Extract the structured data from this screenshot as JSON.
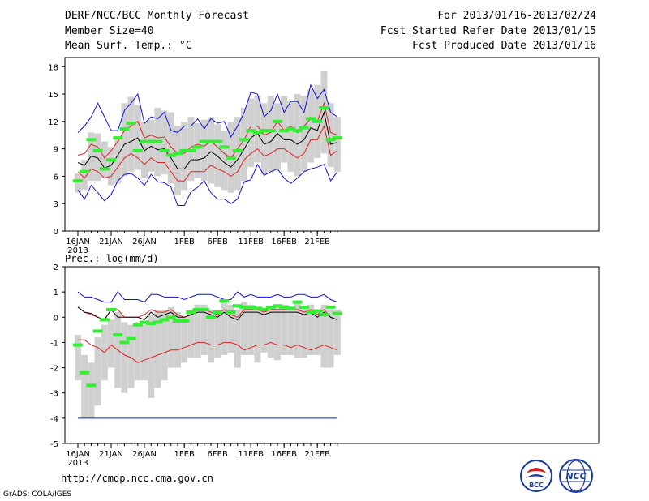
{
  "header": {
    "title": "DERF/NCC/BCC Monthly Forecast",
    "member_size": "Member Size=40",
    "variable1": "Mean Surf. Temp.: °C",
    "period": "For 2013/01/16-2013/02/24",
    "started": "Fcst Started Refer Date 2013/01/15",
    "produced": "Fcst Produced Date 2013/01/16"
  },
  "footer": {
    "url": "http://cmdp.ncc.cma.gov.cn",
    "credit": "GrADS: COLA/IGES",
    "logo_left_text": "BCC",
    "logo_right_text": "NCC"
  },
  "colors": {
    "box": "#d0d0d0",
    "mean": "#000000",
    "std": "#dd2222",
    "range": "#1010dd",
    "median": "#33ee33"
  },
  "chart_data": [
    {
      "type": "line",
      "title": "Mean Surf. Temp.: °C",
      "x_labels": [
        "16JAN",
        "21JAN",
        "26JAN",
        "1FEB",
        "6FEB",
        "11FEB",
        "16FEB",
        "21FEB"
      ],
      "x_label_day_index": [
        0,
        5,
        10,
        16,
        21,
        26,
        31,
        36
      ],
      "year_label": "2013",
      "ylim": [
        0,
        19
      ],
      "yticks": [
        0,
        3,
        6,
        9,
        12,
        15,
        18
      ],
      "days": 40,
      "box_low": [
        4.2,
        4.5,
        5.5,
        5.5,
        5.8,
        5.0,
        5.2,
        6.0,
        6.5,
        6.7,
        5.8,
        6.5,
        6.0,
        6.2,
        5.2,
        4.0,
        4.5,
        5.5,
        5.8,
        5.5,
        5.2,
        4.8,
        4.5,
        4.2,
        4.5,
        5.5,
        7.0,
        7.5,
        6.2,
        6.5,
        6.8,
        7.5,
        6.5,
        6.0,
        6.5,
        7.5,
        8.0,
        8.5,
        7.0,
        6.5
      ],
      "box_high": [
        6.3,
        7.8,
        10.8,
        10.7,
        9.8,
        9.2,
        10.2,
        14.0,
        14.7,
        13.8,
        12.0,
        12.2,
        13.5,
        13.2,
        13.0,
        11.5,
        12.0,
        12.5,
        11.8,
        12.2,
        12.5,
        11.7,
        11.0,
        12.0,
        12.5,
        13.5,
        14.5,
        14.8,
        14.0,
        14.8,
        14.0,
        14.8,
        14.2,
        15.0,
        14.8,
        15.5,
        16.0,
        17.5,
        14.0,
        12.5
      ],
      "max": [
        10.8,
        11.5,
        12.5,
        14.0,
        12.5,
        11.0,
        11.0,
        13.2,
        14.0,
        15.0,
        11.8,
        12.5,
        12.3,
        13.0,
        11.0,
        10.8,
        11.5,
        11.5,
        12.3,
        11.2,
        12.3,
        11.8,
        12.0,
        10.3,
        11.5,
        13.0,
        15.2,
        15.0,
        12.5,
        13.2,
        15.0,
        13.0,
        14.2,
        14.2,
        13.0,
        16.0,
        14.5,
        15.5,
        13.0,
        12.5
      ],
      "min": [
        4.5,
        3.5,
        5.0,
        4.2,
        3.3,
        4.0,
        5.5,
        6.2,
        6.3,
        5.8,
        5.0,
        6.2,
        5.4,
        5.3,
        4.8,
        2.8,
        2.8,
        4.3,
        4.8,
        5.5,
        4.2,
        3.5,
        3.5,
        3.0,
        3.5,
        5.4,
        5.6,
        7.3,
        6.1,
        6.5,
        6.8,
        5.8,
        5.2,
        5.8,
        6.5,
        6.8,
        7.0,
        7.3,
        5.5,
        6.5
      ],
      "std_high": [
        8.3,
        8.5,
        9.5,
        9.2,
        8.0,
        8.8,
        9.8,
        11.0,
        11.5,
        12.0,
        10.2,
        10.5,
        10.2,
        10.3,
        9.2,
        8.5,
        8.5,
        9.2,
        9.5,
        9.3,
        9.8,
        9.2,
        8.5,
        8.0,
        9.0,
        10.0,
        11.5,
        11.5,
        10.5,
        10.8,
        12.0,
        11.0,
        11.5,
        10.8,
        11.5,
        12.3,
        12.0,
        14.0,
        10.8,
        10.5
      ],
      "std_low": [
        6.5,
        5.8,
        6.8,
        6.5,
        5.8,
        6.0,
        7.0,
        8.0,
        8.5,
        8.0,
        7.3,
        8.0,
        7.5,
        7.5,
        6.5,
        5.5,
        5.5,
        6.5,
        6.5,
        6.5,
        7.2,
        6.8,
        6.5,
        6.0,
        6.5,
        7.8,
        8.5,
        9.0,
        8.2,
        8.5,
        9.0,
        9.0,
        8.5,
        8.0,
        8.5,
        10.0,
        10.0,
        11.5,
        8.3,
        8.8
      ],
      "mean": [
        7.5,
        7.2,
        8.2,
        8.0,
        6.9,
        7.2,
        8.3,
        9.5,
        9.8,
        10.2,
        8.8,
        9.3,
        8.9,
        9.0,
        8.0,
        6.8,
        6.8,
        7.8,
        7.8,
        8.0,
        8.7,
        8.2,
        7.5,
        7.0,
        7.8,
        9.0,
        10.2,
        10.7,
        9.5,
        9.8,
        10.7,
        10.0,
        10.0,
        9.5,
        10.0,
        11.3,
        11.0,
        13.0,
        9.5,
        9.7
      ],
      "median": [
        5.5,
        6.5,
        10.0,
        8.8,
        6.8,
        7.8,
        10.2,
        11.2,
        11.8,
        8.8,
        9.8,
        9.8,
        9.8,
        8.8,
        8.3,
        8.5,
        8.8,
        8.8,
        9.2,
        9.8,
        9.8,
        9.8,
        9.2,
        8.0,
        8.8,
        10.0,
        11.0,
        10.8,
        11.0,
        11.0,
        12.0,
        11.0,
        11.2,
        11.0,
        11.3,
        12.3,
        12.0,
        13.5,
        10.0,
        10.2
      ]
    },
    {
      "type": "line",
      "title": "Prec.: log(mm/d)",
      "x_labels": [
        "16JAN",
        "21JAN",
        "26JAN",
        "1FEB",
        "6FEB",
        "11FEB",
        "16FEB",
        "21FEB"
      ],
      "x_label_day_index": [
        0,
        5,
        10,
        16,
        21,
        26,
        31,
        36
      ],
      "year_label": "2013",
      "ylim": [
        -5,
        2
      ],
      "yticks": [
        -5,
        -4,
        -3,
        -2,
        -1,
        0,
        1,
        2
      ],
      "days": 40,
      "box_low": [
        -2.5,
        -4,
        -4,
        -3.5,
        -2.5,
        -2.0,
        -2.8,
        -3.0,
        -2.8,
        -2.5,
        -2.5,
        -3.2,
        -2.8,
        -2.5,
        -2.0,
        -2.0,
        -1.8,
        -1.6,
        -1.6,
        -1.5,
        -1.8,
        -1.6,
        -1.5,
        -1.4,
        -2.0,
        -1.5,
        -1.5,
        -1.8,
        -1.4,
        -1.6,
        -1.7,
        -1.5,
        -1.5,
        -1.6,
        -1.6,
        -1.5,
        -1.5,
        -2.0,
        -2.0,
        -1.5
      ],
      "box_high": [
        -0.7,
        -1.5,
        -1.8,
        -0.8,
        -0.3,
        -0.1,
        0.2,
        -0.2,
        -0.3,
        -0.2,
        -0.3,
        0.1,
        0.3,
        0.3,
        0.4,
        0.2,
        0.0,
        0.2,
        0.5,
        0.5,
        0.3,
        0.3,
        0.6,
        0.5,
        0.3,
        0.6,
        0.5,
        0.4,
        0.3,
        0.4,
        0.5,
        0.5,
        0.4,
        0.6,
        0.4,
        0.5,
        0.3,
        0.5,
        0.3,
        0.3
      ],
      "max": [
        1.0,
        0.8,
        0.8,
        0.7,
        0.6,
        0.6,
        1.0,
        0.7,
        0.7,
        0.7,
        0.6,
        0.9,
        0.9,
        0.8,
        0.8,
        0.8,
        0.7,
        0.8,
        0.9,
        0.9,
        0.9,
        0.8,
        0.7,
        0.7,
        1.0,
        0.8,
        0.9,
        0.8,
        0.8,
        0.8,
        0.9,
        0.8,
        0.8,
        0.9,
        0.9,
        0.8,
        0.8,
        0.9,
        0.7,
        0.6
      ],
      "min": [
        -4,
        -4,
        -4,
        -4,
        -4,
        -4,
        -4,
        -4,
        -4,
        -4,
        -4,
        -4,
        -4,
        -4,
        -4,
        -4,
        -4,
        -4,
        -4,
        -4,
        -4,
        -4,
        -4,
        -4,
        -4,
        -4,
        -4,
        -4,
        -4,
        -4,
        -4,
        -4,
        -4,
        -4,
        -4,
        -4,
        -4,
        -4,
        -4,
        -4
      ],
      "std_high": [
        0.4,
        0.2,
        0.1,
        0.0,
        -0.1,
        0.3,
        0.3,
        0.0,
        0.0,
        0.0,
        0.1,
        0.3,
        0.2,
        0.2,
        0.3,
        0.1,
        0.0,
        0.1,
        0.3,
        0.3,
        0.2,
        0.1,
        0.3,
        0.1,
        0.0,
        0.3,
        0.3,
        0.3,
        0.2,
        0.3,
        0.3,
        0.3,
        0.3,
        0.3,
        0.2,
        0.3,
        0.1,
        0.3,
        0.0,
        -0.1
      ],
      "std_low": [
        -0.9,
        -0.9,
        -1.1,
        -1.2,
        -1.4,
        -1.1,
        -1.3,
        -1.5,
        -1.6,
        -1.8,
        -1.7,
        -1.6,
        -1.5,
        -1.4,
        -1.3,
        -1.3,
        -1.2,
        -1.1,
        -1.0,
        -1.0,
        -1.1,
        -1.1,
        -1.0,
        -1.0,
        -1.1,
        -1.3,
        -1.2,
        -1.1,
        -1.1,
        -1.0,
        -1.1,
        -1.1,
        -1.2,
        -1.1,
        -1.2,
        -1.3,
        -1.2,
        -1.1,
        -1.2,
        -1.3
      ],
      "mean": [
        0.4,
        0.2,
        0.15,
        0.0,
        -0.1,
        0.3,
        0.0,
        0.0,
        0.0,
        0.0,
        -0.1,
        0.2,
        0.0,
        0.1,
        0.2,
        0.0,
        0.0,
        0.1,
        0.2,
        0.2,
        0.1,
        0.0,
        0.2,
        0.0,
        -0.1,
        0.2,
        0.2,
        0.2,
        0.1,
        0.2,
        0.2,
        0.2,
        0.2,
        0.2,
        0.1,
        0.2,
        0.0,
        0.2,
        0.0,
        -0.1
      ],
      "median": [
        -1.1,
        -2.2,
        -2.7,
        -0.55,
        -0.1,
        0.3,
        -0.7,
        -1.0,
        -0.85,
        -0.3,
        -0.2,
        -0.25,
        -0.2,
        -0.1,
        0.0,
        -0.15,
        -0.15,
        0.2,
        0.3,
        0.3,
        0.0,
        0.2,
        0.65,
        0.2,
        0.45,
        0.4,
        0.4,
        0.35,
        0.3,
        0.4,
        0.45,
        0.4,
        0.35,
        0.6,
        0.4,
        0.2,
        0.25,
        0.1,
        0.4,
        0.15
      ]
    }
  ]
}
